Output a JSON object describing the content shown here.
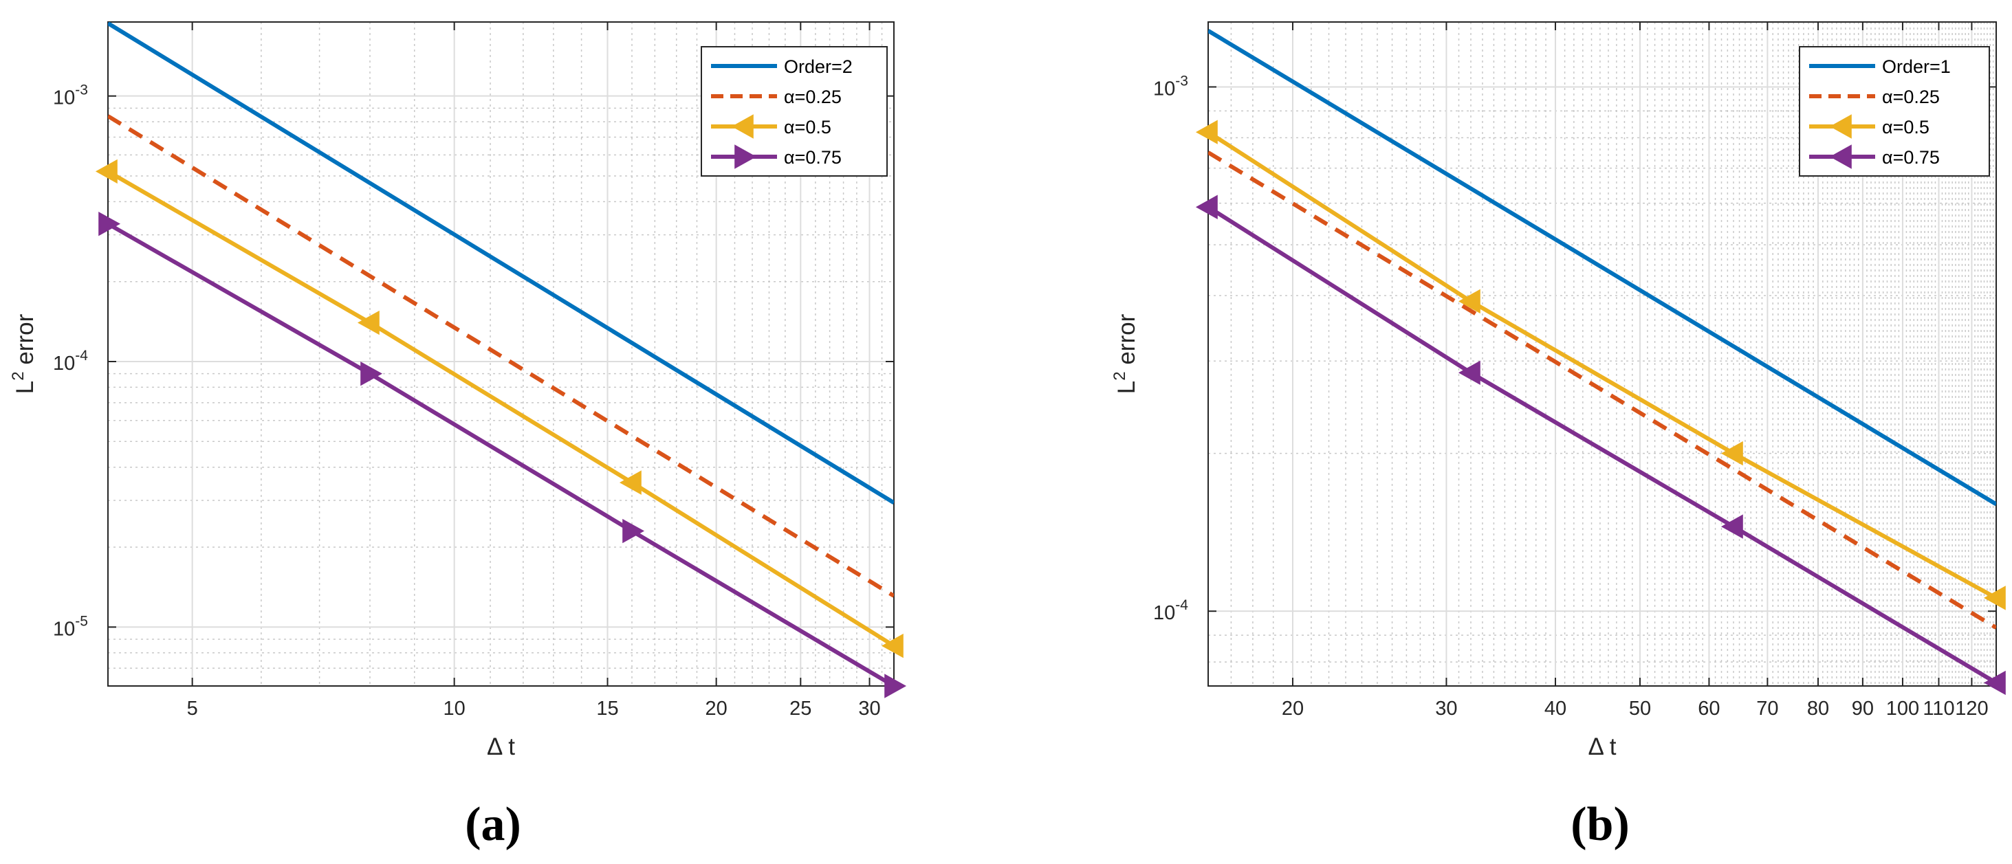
{
  "colors": {
    "order_line": "#0072BD",
    "alpha_025": "#D95319",
    "alpha_05": "#EDB120",
    "alpha_075": "#7E2F8E",
    "grid_major": "#DDDDDD",
    "grid_minor": "#C8C8C8",
    "axis": "#262626"
  },
  "chart_data": [
    {
      "type": "line",
      "panel": "a",
      "caption_letter": "a",
      "xscale": "log",
      "yscale": "log",
      "xlabel": "Δ t",
      "ylabel_base": "L",
      "ylabel_sup": "2",
      "ylabel_rest": " error",
      "xlim": [
        4,
        32
      ],
      "ylim": [
        6e-06,
        0.0019
      ],
      "xticks": [
        5,
        10,
        15,
        20,
        25,
        30
      ],
      "xtick_labels": [
        "5",
        "10",
        "15",
        "20",
        "25",
        "30"
      ],
      "yticks": [
        1e-05,
        0.0001,
        0.001
      ],
      "ytick_base": "10",
      "ytick_exps": [
        "-5",
        "-4",
        "-3"
      ],
      "legend_position": "top-right",
      "grid": true,
      "series": [
        {
          "name": "Order=2",
          "style": "solid",
          "marker": "none",
          "x": [
            4,
            32
          ],
          "y": [
            0.00188,
            2.94e-05
          ]
        },
        {
          "name": "α=0.25",
          "style": "dashed",
          "marker": "none",
          "x": [
            4,
            32
          ],
          "y": [
            0.00084,
            1.31e-05
          ]
        },
        {
          "name": "α=0.5",
          "style": "solid",
          "marker": "triangle-left",
          "x": [
            4,
            8,
            16,
            32
          ],
          "y": [
            0.00052,
            0.00014,
            3.5e-05,
            8.5e-06
          ]
        },
        {
          "name": "α=0.75",
          "style": "solid",
          "marker": "triangle-right",
          "x": [
            4,
            8,
            16,
            32
          ],
          "y": [
            0.00033,
            9e-05,
            2.3e-05,
            6e-06
          ]
        }
      ]
    },
    {
      "type": "line",
      "panel": "b",
      "caption_letter": "b",
      "xscale": "log",
      "yscale": "log",
      "xlabel": "Δ t",
      "ylabel_base": "L",
      "ylabel_sup": "2",
      "ylabel_rest": " error",
      "xlim": [
        16,
        128
      ],
      "ylim": [
        7.2e-05,
        0.00133
      ],
      "xticks": [
        20,
        30,
        40,
        50,
        60,
        70,
        80,
        90,
        100,
        110,
        120
      ],
      "xtick_labels": [
        "20",
        "30",
        "40",
        "50",
        "60",
        "70",
        "80",
        "90",
        "100",
        "110",
        "120"
      ],
      "yticks": [
        0.0001,
        0.001
      ],
      "ytick_base": "10",
      "ytick_exps": [
        "-4",
        "-3"
      ],
      "legend_position": "top-right",
      "grid": true,
      "series": [
        {
          "name": "Order=1",
          "style": "solid",
          "marker": "none",
          "x": [
            16,
            128
          ],
          "y": [
            0.00128,
            0.00016
          ]
        },
        {
          "name": "α=0.25",
          "style": "dashed",
          "marker": "none",
          "x": [
            16,
            128
          ],
          "y": [
            0.00075,
            9.3e-05
          ]
        },
        {
          "name": "α=0.5",
          "style": "solid",
          "marker": "triangle-left",
          "x": [
            16,
            32,
            64,
            128
          ],
          "y": [
            0.00082,
            0.00039,
            0.0002,
            0.000106
          ]
        },
        {
          "name": "α=0.75",
          "style": "solid",
          "marker": "triangle-left",
          "x": [
            16,
            32,
            64,
            128
          ],
          "y": [
            0.00059,
            0.000285,
            0.000145,
            7.3e-05
          ]
        }
      ]
    }
  ]
}
